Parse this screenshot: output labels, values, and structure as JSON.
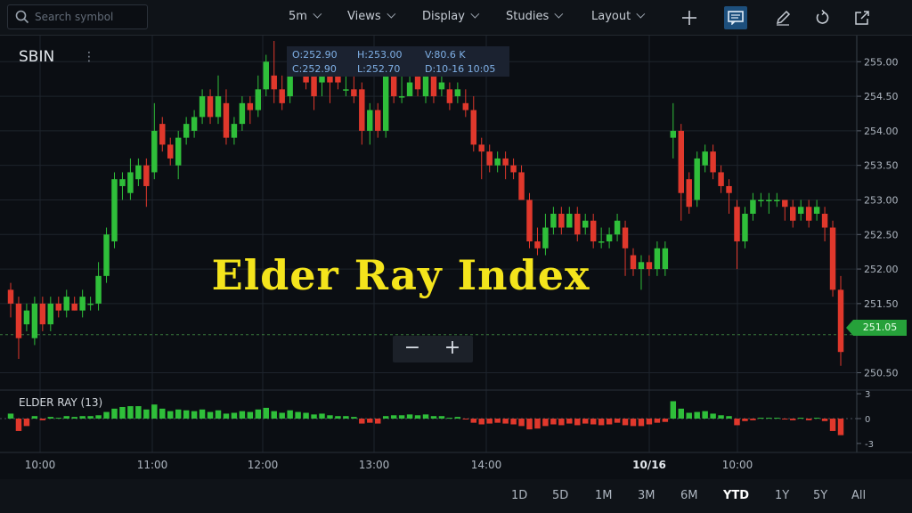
{
  "toolbar": {
    "search_placeholder": "Search symbol",
    "interval": "5m",
    "views": "Views",
    "display": "Display",
    "studies": "Studies",
    "layout": "Layout"
  },
  "symbol": "SBIN",
  "ohlc": {
    "open": "O:252.90",
    "high": "H:253.00",
    "volume": "V:80.6 K",
    "close": "C:252.90",
    "low": "L:252.70",
    "date": "D:10-16 10:05"
  },
  "overlay_title": "Elder Ray Index",
  "zoom": {
    "minus": "−",
    "plus": "+"
  },
  "last_price": "251.05",
  "indicator": {
    "label": "ELDER RAY (13)",
    "axis": [
      "3",
      "0",
      "-3"
    ]
  },
  "colors": {
    "up": "#2fbf3a",
    "down": "#e0382c",
    "accent": "#1d4f7c",
    "title": "#f4e41c"
  },
  "ranges": [
    "1D",
    "5D",
    "1M",
    "3M",
    "6M",
    "YTD",
    "1Y",
    "5Y",
    "All"
  ],
  "active_range": "YTD",
  "chart_data": {
    "type": "candlestick",
    "x_ticks": [
      "10:00",
      "11:00",
      "12:00",
      "13:00",
      "14:00",
      "10/16",
      "10:00"
    ],
    "y_ticks": [
      "255.00",
      "254.50",
      "254.00",
      "253.50",
      "253.00",
      "252.50",
      "252.00",
      "251.50",
      "250.50"
    ],
    "ylim": [
      250.3,
      255.3
    ],
    "candles": [
      [
        251.7,
        251.5,
        251.8,
        251.3
      ],
      [
        251.5,
        251.0,
        251.6,
        250.7
      ],
      [
        251.2,
        251.4,
        251.5,
        251.1
      ],
      [
        251.0,
        251.5,
        251.6,
        250.9
      ],
      [
        251.5,
        251.2,
        251.6,
        251.1
      ],
      [
        251.2,
        251.5,
        251.6,
        251.1
      ],
      [
        251.5,
        251.4,
        251.6,
        251.3
      ],
      [
        251.4,
        251.6,
        251.7,
        251.3
      ],
      [
        251.5,
        251.4,
        251.6,
        251.4
      ],
      [
        251.4,
        251.6,
        251.7,
        251.3
      ],
      [
        251.5,
        251.5,
        251.6,
        251.4
      ],
      [
        251.5,
        251.9,
        252.1,
        251.4
      ],
      [
        251.9,
        252.5,
        252.6,
        251.8
      ],
      [
        252.4,
        253.3,
        253.4,
        252.3
      ],
      [
        253.2,
        253.3,
        253.4,
        253.0
      ],
      [
        253.1,
        253.4,
        253.6,
        253.0
      ],
      [
        253.3,
        253.5,
        253.6,
        253.2
      ],
      [
        253.5,
        253.2,
        253.6,
        252.9
      ],
      [
        253.4,
        254.0,
        254.4,
        253.3
      ],
      [
        254.1,
        253.8,
        254.2,
        253.7
      ],
      [
        253.8,
        253.6,
        253.9,
        253.5
      ],
      [
        253.5,
        253.9,
        254.0,
        253.3
      ],
      [
        253.9,
        254.1,
        254.2,
        253.8
      ],
      [
        254.0,
        254.2,
        254.3,
        253.9
      ],
      [
        254.2,
        254.5,
        254.6,
        254.1
      ],
      [
        254.5,
        254.2,
        254.6,
        254.1
      ],
      [
        254.2,
        254.5,
        254.8,
        254.1
      ],
      [
        254.4,
        253.9,
        254.6,
        253.8
      ],
      [
        253.9,
        254.1,
        254.2,
        253.8
      ],
      [
        254.1,
        254.4,
        254.5,
        254.0
      ],
      [
        254.4,
        254.3,
        254.5,
        254.1
      ],
      [
        254.3,
        254.6,
        254.8,
        254.2
      ],
      [
        254.6,
        255.0,
        255.1,
        254.5
      ],
      [
        254.8,
        254.6,
        255.3,
        254.4
      ],
      [
        254.6,
        254.4,
        254.8,
        254.3
      ],
      [
        254.5,
        255.1,
        255.2,
        254.4
      ],
      [
        255.0,
        254.9,
        255.1,
        254.8
      ],
      [
        254.8,
        254.7,
        254.9,
        254.6
      ],
      [
        254.9,
        254.5,
        255.0,
        254.3
      ],
      [
        254.7,
        254.9,
        255.0,
        254.5
      ],
      [
        254.9,
        254.7,
        255.0,
        254.4
      ],
      [
        254.8,
        254.7,
        254.9,
        254.6
      ],
      [
        254.6,
        254.6,
        254.8,
        254.5
      ],
      [
        254.6,
        254.5,
        254.8,
        254.4
      ],
      [
        254.6,
        254.0,
        254.7,
        253.8
      ],
      [
        254.0,
        254.3,
        254.4,
        253.8
      ],
      [
        254.3,
        254.0,
        254.4,
        253.9
      ],
      [
        254.0,
        254.8,
        254.9,
        253.9
      ],
      [
        254.8,
        254.5,
        254.9,
        254.4
      ],
      [
        254.5,
        254.5,
        254.9,
        254.4
      ],
      [
        254.5,
        254.7,
        254.8,
        254.5
      ],
      [
        254.8,
        254.6,
        254.9,
        254.5
      ],
      [
        254.5,
        254.9,
        255.0,
        254.4
      ],
      [
        254.8,
        254.5,
        254.9,
        254.4
      ],
      [
        254.6,
        254.7,
        254.8,
        254.5
      ],
      [
        254.6,
        254.4,
        254.7,
        254.3
      ],
      [
        254.5,
        254.6,
        254.7,
        254.4
      ],
      [
        254.4,
        254.3,
        254.6,
        254.2
      ],
      [
        254.3,
        253.8,
        254.5,
        253.7
      ],
      [
        253.8,
        253.7,
        253.9,
        253.3
      ],
      [
        253.7,
        253.5,
        253.8,
        253.4
      ],
      [
        253.5,
        253.6,
        253.7,
        253.4
      ],
      [
        253.6,
        253.5,
        253.7,
        253.3
      ],
      [
        253.5,
        253.4,
        253.6,
        253.3
      ],
      [
        253.4,
        253.0,
        253.5,
        253.0
      ],
      [
        253.0,
        252.4,
        253.1,
        252.3
      ],
      [
        252.4,
        252.3,
        252.6,
        252.2
      ],
      [
        252.3,
        252.6,
        252.8,
        252.2
      ],
      [
        252.6,
        252.8,
        252.9,
        252.5
      ],
      [
        252.8,
        252.6,
        252.9,
        252.5
      ],
      [
        252.6,
        252.8,
        252.9,
        252.6
      ],
      [
        252.8,
        252.5,
        252.9,
        252.4
      ],
      [
        252.6,
        252.7,
        252.8,
        252.5
      ],
      [
        252.7,
        252.4,
        252.8,
        252.3
      ],
      [
        252.4,
        252.4,
        252.6,
        252.3
      ],
      [
        252.4,
        252.5,
        252.6,
        252.3
      ],
      [
        252.5,
        252.7,
        252.8,
        252.4
      ],
      [
        252.6,
        252.3,
        252.7,
        251.9
      ],
      [
        252.2,
        252.0,
        252.3,
        251.9
      ],
      [
        252.0,
        252.1,
        252.2,
        251.7
      ],
      [
        252.1,
        252.0,
        252.2,
        251.9
      ],
      [
        252.0,
        252.3,
        252.4,
        251.9
      ],
      [
        252.0,
        252.3,
        252.4,
        251.9
      ],
      [
        253.9,
        254.0,
        254.4,
        253.6
      ],
      [
        254.0,
        253.1,
        254.1,
        252.7
      ],
      [
        253.3,
        252.9,
        253.4,
        252.8
      ],
      [
        253.0,
        253.6,
        253.7,
        252.9
      ],
      [
        253.5,
        253.7,
        253.8,
        253.4
      ],
      [
        253.7,
        253.4,
        253.8,
        253.3
      ],
      [
        253.4,
        253.2,
        253.5,
        253.1
      ],
      [
        253.2,
        253.1,
        253.3,
        252.8
      ],
      [
        252.9,
        252.4,
        253.0,
        252.0
      ],
      [
        252.4,
        252.8,
        252.9,
        252.3
      ],
      [
        252.8,
        253.0,
        253.1,
        252.7
      ],
      [
        253.0,
        253.0,
        253.1,
        252.9
      ],
      [
        253.0,
        253.0,
        253.1,
        252.8
      ],
      [
        253.0,
        253.0,
        253.1,
        252.9
      ],
      [
        253.0,
        252.9,
        253.0,
        252.7
      ],
      [
        252.9,
        252.7,
        253.0,
        252.6
      ],
      [
        252.8,
        252.9,
        253.0,
        252.7
      ],
      [
        252.9,
        252.7,
        253.0,
        252.6
      ],
      [
        252.8,
        252.9,
        253.0,
        252.7
      ],
      [
        252.8,
        252.6,
        252.9,
        252.4
      ],
      [
        252.6,
        251.7,
        252.7,
        251.6
      ],
      [
        251.7,
        250.8,
        251.9,
        250.6
      ]
    ],
    "elder_ray": [
      0.6,
      -1.5,
      -0.9,
      0.3,
      -0.2,
      0.2,
      0.1,
      0.3,
      0.2,
      0.3,
      0.3,
      0.4,
      0.8,
      1.2,
      1.4,
      1.5,
      1.5,
      1.1,
      1.7,
      1.2,
      0.9,
      1.1,
      1.0,
      0.9,
      1.1,
      0.8,
      1.0,
      0.6,
      0.7,
      0.9,
      0.8,
      1.1,
      1.3,
      0.9,
      0.7,
      1.0,
      0.8,
      0.7,
      0.5,
      0.6,
      0.4,
      0.3,
      0.3,
      0.2,
      -0.6,
      -0.5,
      -0.6,
      0.3,
      0.4,
      0.4,
      0.5,
      0.4,
      0.5,
      0.3,
      0.3,
      0.1,
      0.2,
      -0.1,
      -0.5,
      -0.7,
      -0.6,
      -0.5,
      -0.6,
      -0.7,
      -0.9,
      -1.3,
      -1.2,
      -0.9,
      -0.7,
      -0.8,
      -0.6,
      -0.8,
      -0.6,
      -0.7,
      -0.8,
      -0.7,
      -0.5,
      -0.8,
      -0.9,
      -0.9,
      -0.7,
      -0.5,
      -0.4,
      2.1,
      1.2,
      0.7,
      0.8,
      0.9,
      0.6,
      0.4,
      0.3,
      -0.8,
      -0.3,
      -0.2,
      0.1,
      0.1,
      0.1,
      -0.1,
      -0.2,
      0.1,
      -0.2,
      0.1,
      -0.3,
      -1.5,
      -2.0
    ],
    "xlabel": "",
    "ylabel": "",
    "grid": true
  }
}
